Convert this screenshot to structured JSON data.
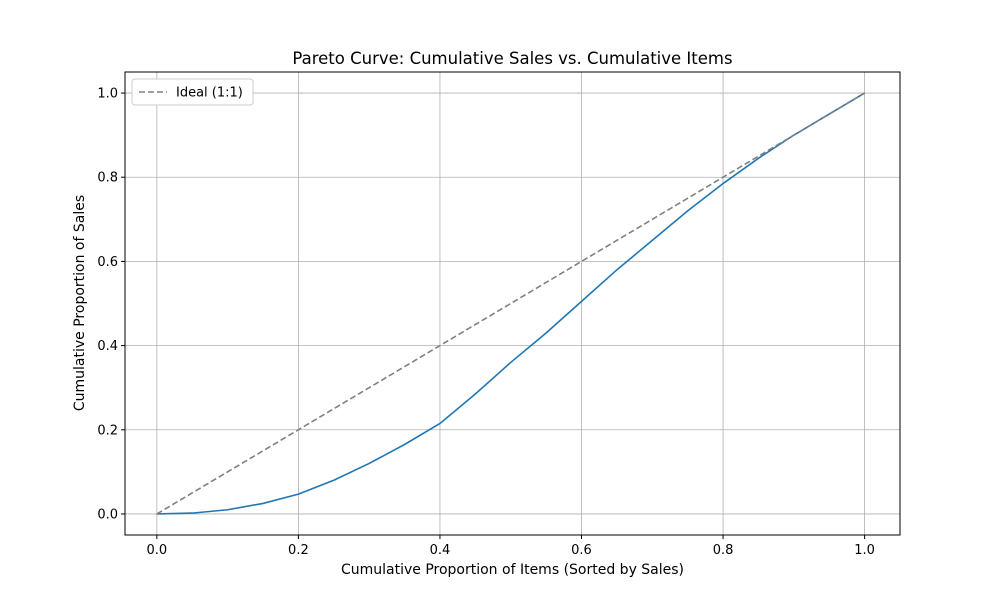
{
  "chart_data": {
    "type": "line",
    "title": "Pareto Curve: Cumulative Sales vs. Cumulative Items",
    "xlabel": "Cumulative Proportion of Items (Sorted by Sales)",
    "ylabel": "Cumulative Proportion of Sales",
    "xlim": [
      -0.045,
      1.05
    ],
    "ylim": [
      -0.05,
      1.05
    ],
    "xticks": [
      "0.0",
      "0.2",
      "0.4",
      "0.6",
      "0.8",
      "1.0"
    ],
    "yticks": [
      "0.0",
      "0.2",
      "0.4",
      "0.6",
      "0.8",
      "1.0"
    ],
    "grid": true,
    "legend": {
      "position": "top-left",
      "entries": [
        "Ideal (1:1)"
      ]
    },
    "series": [
      {
        "name": "",
        "style": "solid",
        "color": "#1f77b4",
        "x": [
          0.0,
          0.05,
          0.1,
          0.15,
          0.2,
          0.25,
          0.3,
          0.35,
          0.4,
          0.45,
          0.5,
          0.55,
          0.6,
          0.65,
          0.7,
          0.75,
          0.8,
          0.85,
          0.9,
          0.95,
          1.0
        ],
        "y": [
          0.0,
          0.002,
          0.01,
          0.025,
          0.047,
          0.08,
          0.12,
          0.165,
          0.215,
          0.285,
          0.36,
          0.43,
          0.505,
          0.58,
          0.65,
          0.72,
          0.785,
          0.845,
          0.9,
          0.95,
          1.0
        ]
      },
      {
        "name": "Ideal (1:1)",
        "style": "dashed",
        "color": "#808080",
        "x": [
          0.0,
          1.0
        ],
        "y": [
          0.0,
          1.0
        ]
      }
    ]
  }
}
